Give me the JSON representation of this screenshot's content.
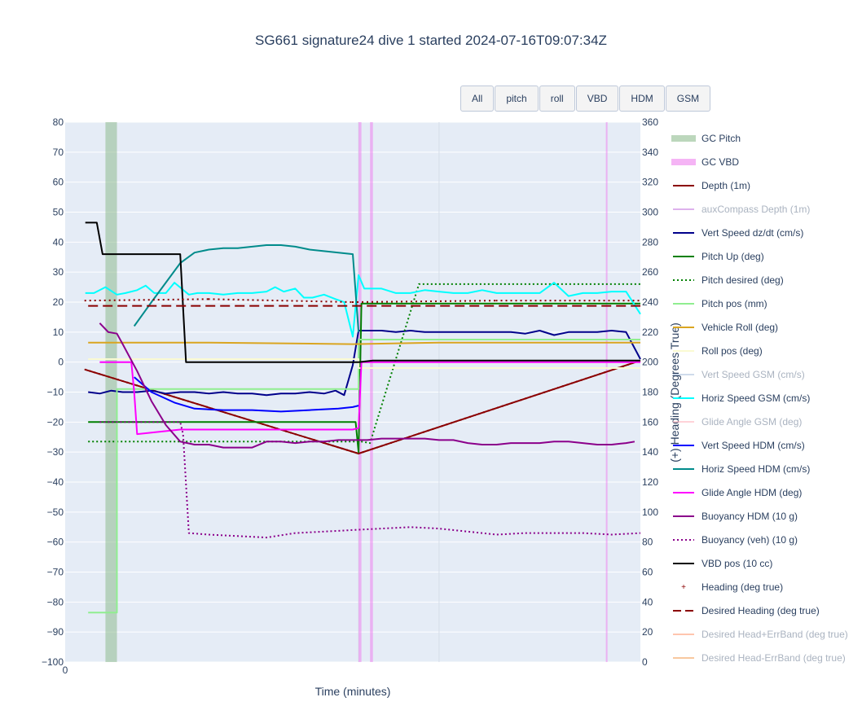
{
  "title": "SG661 signature24 dive 1 started 2024-07-16T09:07:34Z",
  "buttons": [
    "All",
    "pitch",
    "roll",
    "VBD",
    "HDM",
    "GSM"
  ],
  "chart_data": {
    "type": "line",
    "xlabel": "Time (minutes)",
    "ylabel_right": "(+) Heading (Degrees True)",
    "x_ticks": [
      "0"
    ],
    "xlim": [
      0,
      20
    ],
    "ylim_left": [
      -100,
      80
    ],
    "ylim_right": [
      0,
      360
    ],
    "y_ticks_left": [
      "80",
      "70",
      "60",
      "50",
      "40",
      "30",
      "20",
      "10",
      "0",
      "−10",
      "−20",
      "−30",
      "−40",
      "−50",
      "−60",
      "−70",
      "−80",
      "−90",
      "−100"
    ],
    "y_ticks_right": [
      "360",
      "340",
      "320",
      "300",
      "280",
      "260",
      "240",
      "220",
      "200",
      "180",
      "160",
      "140",
      "120",
      "100",
      "80",
      "60",
      "40",
      "20",
      "0"
    ],
    "shaded_regions": [
      {
        "name": "GC Pitch",
        "color": "#8fbc8f",
        "ranges": [
          [
            1.4,
            1.8
          ]
        ]
      },
      {
        "name": "GC VBD",
        "color": "#ee82ee",
        "ranges": [
          [
            10.2,
            10.3
          ],
          [
            10.6,
            10.7
          ],
          [
            18.8,
            18.85
          ]
        ]
      }
    ],
    "series": [
      {
        "name": "Depth (1m)",
        "axis": "left",
        "color": "#8b0000",
        "style": "line-marker",
        "x": [
          0.7,
          10.2,
          20
        ],
        "y": [
          -2.5,
          -30.5,
          0.5
        ]
      },
      {
        "name": "auxCompass Depth (1m)",
        "axis": "left",
        "color": "#c87ee0",
        "style": "line",
        "visible": false,
        "x": [],
        "y": []
      },
      {
        "name": "Vert Speed dz/dt (cm/s)",
        "axis": "left",
        "color": "#00008b",
        "style": "line",
        "x": [
          0.8,
          1.2,
          1.6,
          2.0,
          2.5,
          3.0,
          3.5,
          4.0,
          4.5,
          5.0,
          5.5,
          6.0,
          6.5,
          7.0,
          7.5,
          8.0,
          8.5,
          9.0,
          9.4,
          9.7,
          10.0,
          10.2,
          10.5,
          11.0,
          11.5,
          12.0,
          12.5,
          13.0,
          13.5,
          14.0,
          14.5,
          15.0,
          15.5,
          16.0,
          16.5,
          17.0,
          17.5,
          18.0,
          18.5,
          19.0,
          19.5,
          20.0
        ],
        "y": [
          -10,
          -10.5,
          -9.5,
          -10,
          -10,
          -9.5,
          -10.5,
          -10,
          -10,
          -10.5,
          -10,
          -10.5,
          -10.5,
          -11,
          -10.5,
          -10.5,
          -10,
          -10.5,
          -9.5,
          -11,
          -1,
          10.5,
          10.5,
          10.5,
          10,
          10.5,
          10,
          10,
          10,
          10,
          10,
          10,
          10,
          9.5,
          10.5,
          9,
          10,
          10,
          10,
          10.5,
          10,
          1
        ]
      },
      {
        "name": "Pitch Up (deg)",
        "axis": "left",
        "color": "#008000",
        "style": "line",
        "x": [
          0.8,
          10.1,
          10.2,
          10.3,
          20
        ],
        "y": [
          -20,
          -20,
          -30,
          19.5,
          19.5
        ]
      },
      {
        "name": "Pitch desired (deg)",
        "axis": "left",
        "color": "#008000",
        "style": "dot",
        "x": [
          0.8,
          10.3,
          10.6,
          12.3,
          20
        ],
        "y": [
          -26.5,
          -26.5,
          -27,
          26,
          26
        ]
      },
      {
        "name": "Pitch pos (mm)",
        "axis": "left",
        "color": "#90ee90",
        "style": "line",
        "x": [
          0.8,
          1.8,
          1.8,
          10.2,
          10.2,
          20
        ],
        "y": [
          -83.5,
          -83.5,
          -9,
          -9,
          7.5,
          7.5
        ]
      },
      {
        "name": "Vehicle Roll (deg)",
        "axis": "left",
        "color": "#daa520",
        "style": "line",
        "x": [
          0.8,
          5,
          10,
          13,
          17,
          20
        ],
        "y": [
          6.5,
          6.5,
          6,
          6.5,
          6.5,
          6.5
        ]
      },
      {
        "name": "Roll pos (deg)",
        "axis": "left",
        "color": "#fafad2",
        "style": "line",
        "x": [
          0.8,
          10.2,
          10.2,
          20
        ],
        "y": [
          1,
          1,
          -2,
          -2
        ]
      },
      {
        "name": "Vert Speed GSM (cm/s)",
        "axis": "left",
        "color": "#b0c4de",
        "style": "line",
        "visible": false,
        "x": [],
        "y": []
      },
      {
        "name": "Horiz Speed GSM (cm/s)",
        "axis": "left",
        "color": "#00ffff",
        "style": "line",
        "x": [
          0.7,
          1.0,
          1.4,
          1.8,
          2.1,
          2.5,
          2.8,
          3.1,
          3.5,
          3.8,
          4.3,
          4.6,
          5.0,
          5.5,
          6.0,
          6.5,
          7.0,
          7.3,
          7.6,
          8.0,
          8.3,
          8.6,
          9.0,
          9.4,
          9.7,
          10.0,
          10.2,
          10.4,
          11.0,
          11.5,
          12.0,
          12.5,
          13.0,
          13.5,
          14.0,
          14.5,
          15.0,
          15.5,
          16.0,
          16.5,
          17.0,
          17.5,
          18.0,
          18.5,
          19.0,
          19.5,
          20.0
        ],
        "y": [
          23,
          23,
          25,
          22.5,
          23,
          24,
          25.5,
          23,
          23,
          26.5,
          22.5,
          23,
          23,
          22.5,
          23,
          23,
          23.5,
          25,
          23.5,
          24.5,
          21.5,
          21.5,
          22.5,
          21,
          20,
          8.5,
          29,
          24.5,
          24.5,
          23,
          23,
          24,
          23.5,
          23,
          23,
          24,
          23,
          23,
          23,
          23,
          26.5,
          22,
          23,
          23,
          23.5,
          23.5,
          16
        ]
      },
      {
        "name": "Glide Angle GSM (deg)",
        "axis": "left",
        "color": "#ffb6c1",
        "style": "line",
        "visible": false,
        "x": [],
        "y": []
      },
      {
        "name": "Vert Speed HDM (cm/s)",
        "axis": "left",
        "color": "#0000ff",
        "style": "line",
        "x": [
          2.4,
          3.0,
          3.8,
          4.5,
          5.5,
          6.5,
          7.5,
          8.5,
          9.5,
          10.0,
          10.2
        ],
        "y": [
          -5,
          -10,
          -13.5,
          -15.5,
          -16,
          -16,
          -16.5,
          -16,
          -15.5,
          -15,
          -14.5
        ]
      },
      {
        "name": "Horiz Speed HDM (cm/s)",
        "axis": "left",
        "color": "#008b8b",
        "style": "line",
        "x": [
          2.4,
          3.0,
          4.0,
          4.5,
          5.0,
          5.5,
          6.0,
          6.5,
          7.0,
          7.5,
          8.0,
          8.5,
          9.0,
          9.5,
          10.0,
          10.2
        ],
        "y": [
          12,
          20,
          33,
          36.5,
          37.5,
          38,
          38,
          38.5,
          39,
          39,
          38.5,
          37.5,
          37,
          36.5,
          36,
          10
        ]
      },
      {
        "name": "Glide Angle HDM (deg)",
        "axis": "left",
        "color": "#ff00ff",
        "style": "line",
        "x": [
          1.2,
          2.3,
          2.4,
          2.5,
          3.5,
          4.0,
          6.0,
          10.0,
          10.2,
          10.3,
          20
        ],
        "y": [
          0,
          0,
          -10,
          -24,
          -23,
          -22.5,
          -22.5,
          -22.5,
          -22,
          0,
          0
        ]
      },
      {
        "name": "Buoyancy HDM (10 g)",
        "axis": "left",
        "color": "#8b008b",
        "style": "line",
        "x": [
          1.2,
          1.5,
          1.8,
          2.0,
          2.5,
          3.0,
          3.5,
          4.0,
          4.5,
          5.0,
          5.5,
          6.0,
          6.5,
          7.0,
          7.5,
          8.0,
          8.5,
          9.0,
          9.5,
          10.0,
          10.5,
          11.0,
          11.5,
          12.0,
          12.5,
          13.0,
          13.5,
          14.0,
          14.5,
          15.0,
          15.5,
          16.0,
          16.5,
          17.0,
          17.5,
          18.0,
          18.5,
          19.0,
          19.5,
          19.8
        ],
        "y": [
          13,
          10,
          9.5,
          6,
          -3,
          -13,
          -21,
          -26.5,
          -27.5,
          -27.5,
          -28.5,
          -28.5,
          -28.5,
          -26.5,
          -26.5,
          -27,
          -26.5,
          -26.5,
          -26,
          -26,
          -26,
          -25.5,
          -25.5,
          -25.5,
          -25.5,
          -26,
          -26,
          -27,
          -27.5,
          -27.5,
          -27,
          -27,
          -27,
          -26.5,
          -26.5,
          -27,
          -27.5,
          -27.5,
          -27,
          -26.5
        ]
      },
      {
        "name": "Buoyancy (veh) (10 g)",
        "axis": "left",
        "color": "#8b008b",
        "style": "dot",
        "x": [
          1.2,
          4.0,
          4.1,
          4.3,
          5.0,
          6.0,
          7.0,
          8.0,
          9.0,
          10.0,
          11.0,
          12.0,
          13.0,
          14.0,
          15.0,
          16.0,
          17.0,
          18.0,
          19.0,
          20.0
        ],
        "y": [
          -20,
          -20,
          -24,
          -57,
          -57.5,
          -58,
          -58.5,
          -57,
          -56.5,
          -56,
          -55.5,
          -55,
          -55.5,
          -56.5,
          -57.5,
          -57,
          -57,
          -57,
          -57.5,
          -57
        ]
      },
      {
        "name": "VBD pos (10 cc)",
        "axis": "left",
        "color": "#000000",
        "style": "line",
        "x": [
          0.7,
          1.1,
          1.3,
          4.0,
          4.2,
          10.2,
          10.7,
          20
        ],
        "y": [
          46.5,
          46.5,
          36,
          36,
          0,
          0,
          0.5,
          0.5
        ]
      },
      {
        "name": "Heading (deg true)",
        "axis": "right",
        "color": "#8b0000",
        "style": "marker",
        "x": [
          0.7,
          5,
          10,
          15,
          20
        ],
        "y": [
          241,
          242,
          240,
          241,
          241
        ]
      },
      {
        "name": "Desired Heading (deg true)",
        "axis": "right",
        "color": "#8b0000",
        "style": "dash",
        "x": [
          0.8,
          20
        ],
        "y": [
          237.5,
          237.5
        ]
      },
      {
        "name": "Desired Head+ErrBand (deg true)",
        "axis": "right",
        "color": "#ffa07a",
        "style": "line",
        "visible": false,
        "x": [],
        "y": []
      },
      {
        "name": "Desired Head-ErrBand (deg true)",
        "axis": "right",
        "color": "#f4a460",
        "style": "line",
        "visible": false,
        "x": [],
        "y": []
      }
    ]
  }
}
